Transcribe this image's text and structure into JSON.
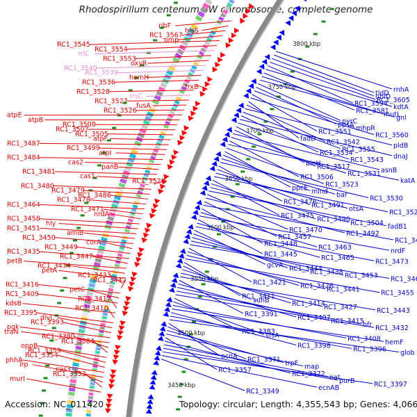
{
  "title": "Rhodospirillum centenum SW chromosome, complete genome",
  "accession": "Accession: NC_011420",
  "topology": "Topology: circular; Length: 4,355,543 bp; Genes: 4,066",
  "colors": {
    "left_labels": "#dd0000",
    "right_labels": "#0000cc",
    "rrna_labels": "#e58fd2",
    "backbone": "#888888",
    "forward_arrows": "#ff0000",
    "reverse_arrows": "#0000ff",
    "ticks": "#1a8a1a"
  },
  "kbp_labels": [
    "3800 kbp",
    "3750 kbp",
    "3700 kbp",
    "3650 kbp",
    "3600 kbp",
    "3550 kbp",
    "3500 kbp",
    "3450 kbp"
  ],
  "left_genes": [
    "ribF",
    "hisS",
    "RC1_3567",
    "omp",
    "RC1_3545",
    "RC1_3554",
    "rrlC",
    "RC1_3553",
    "oxyR",
    "RC1_3540",
    "RC1_3539",
    "hemH",
    "RC1_3536",
    "trxB",
    "RC1_3528",
    "rrsC",
    "RC1_3527",
    "fusA",
    "RC1_3526",
    "atpE",
    "atpB",
    "RC1_3508",
    "RC1_3507",
    "RC1_3505",
    "atpF",
    "RC1_3487",
    "RC1_3499",
    "atpI",
    "RC1_3484",
    "cas2",
    "panB",
    "RC1_3481",
    "cas1",
    "RC1_3520",
    "RC1_3480",
    "RC1_3479",
    "RC1_3486",
    "RC1_3478",
    "RC1_3464",
    "RC1_3471",
    "nrdA",
    "RC1_3458",
    "hly",
    "RC1_3451",
    "amiB",
    "RC1_3450",
    "corA",
    "RC1_3449",
    "RC1_3435",
    "RC1_3447",
    "petB",
    "RC1_3434",
    "petA",
    "RC1_3433",
    "RC1_3442",
    "RC1_3416",
    "petC",
    "RC1_3409",
    "RC1_3417",
    "kdsB",
    "RC1_3410",
    "RC1_3395",
    "divJ",
    "RC1_3393",
    "pgk",
    "traN",
    "RC1_3380",
    "RC1_3384",
    "oppB",
    "RC1_3359",
    "RC1_3354",
    "phhA",
    "lrp",
    "cas3",
    "RC1_3332",
    "murI"
  ],
  "right_genes": [
    "rnhA",
    "tldD",
    "ubiD",
    "RC1_3605",
    "RC1_3594",
    "kdtA",
    "RC1_3581",
    "mutL",
    "gnl",
    "pyrC",
    "ppsA",
    "mhpR",
    "RC1_3551",
    "RC1_3560",
    "fadD",
    "RC1_3542",
    "pldB",
    "RC1_3555",
    "RC1_3534",
    "dnaJ",
    "RC1_3543",
    "bioH",
    "RC1_3517",
    "asnB",
    "RC1_3531",
    "RC1_3506",
    "katA",
    "RC1_3523",
    "ppcE",
    "mind",
    "bar",
    "RC1_3530",
    "RC1_3476",
    "RC1_3491",
    "otsA",
    "RC1_3524",
    "RC1_3475",
    "RC1_3490",
    "RC1_3504",
    "fadB1",
    "RC1_3470",
    "RC1_3492",
    "RC1_3457",
    "RC1_3494",
    "RC1_3448",
    "RC1_3463",
    "nrdF",
    "RC1_3445",
    "RC1_3465",
    "RC1_3473",
    "gcvA",
    "RC1_3444",
    "RC1_3438",
    "RC1_3453",
    "RC1_3466",
    "RC1_3421",
    "RC1_3426",
    "RC1_3441",
    "RC1_3455",
    "RC1_3411",
    "suhB",
    "RC1_3414",
    "RC1_3427",
    "RC1_3443",
    "RC1_3391",
    "RC1_3407",
    "RC1_3415",
    "bfr",
    "RC1_3432",
    "RC1_3383",
    "sfsA",
    "RC1_3408",
    "hemF",
    "RC1_3398",
    "RC1_3396",
    "glob",
    "acnA",
    "RC1_3371",
    "trpF",
    "map",
    "RC1_3357",
    "RC1_3372",
    "nat",
    "purB",
    "RC1_3397",
    "ecnAB",
    "RC1_3349"
  ]
}
